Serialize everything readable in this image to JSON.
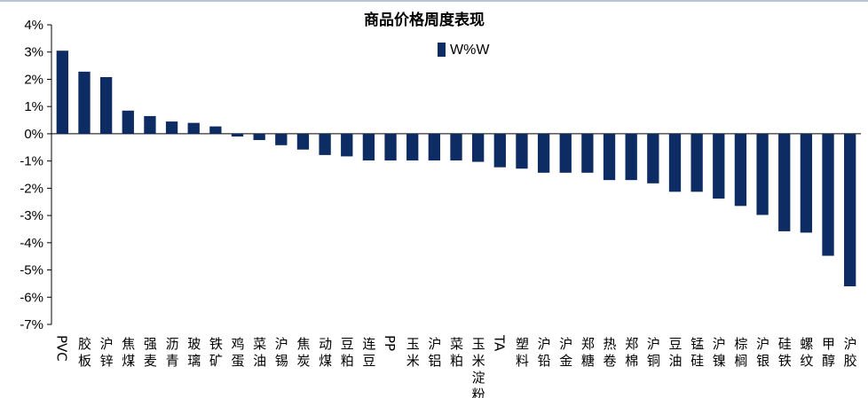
{
  "colors": {
    "bar": "#0d2c64",
    "axis": "#000000"
  },
  "chart_data": {
    "type": "bar",
    "title": "商品价格周度表现",
    "legend": "W%W",
    "legend_position": "top-center",
    "ylim": [
      -0.07,
      0.04
    ],
    "yticks": [
      {
        "value": 0.04,
        "label": "4%"
      },
      {
        "value": 0.03,
        "label": "3%"
      },
      {
        "value": 0.02,
        "label": "2%"
      },
      {
        "value": 0.01,
        "label": "1%"
      },
      {
        "value": 0.0,
        "label": "0%"
      },
      {
        "value": -0.01,
        "label": "-1%"
      },
      {
        "value": -0.02,
        "label": "-2%"
      },
      {
        "value": -0.03,
        "label": "-3%"
      },
      {
        "value": -0.04,
        "label": "-4%"
      },
      {
        "value": -0.05,
        "label": "-5%"
      },
      {
        "value": -0.06,
        "label": "-6%"
      },
      {
        "value": -0.07,
        "label": "-7%"
      }
    ],
    "grid": false,
    "categories": [
      "PVC",
      "胶板",
      "沪锌",
      "焦煤",
      "强麦",
      "沥青",
      "玻璃",
      "铁矿",
      "鸡蛋",
      "菜油",
      "沪锡",
      "焦炭",
      "动煤",
      "豆粕",
      "连豆",
      "PP",
      "玉米",
      "沪铝",
      "菜粕",
      "玉米淀粉",
      "TA",
      "塑料",
      "沪铅",
      "沪金",
      "郑糖",
      "热卷",
      "郑棉",
      "沪铜",
      "豆油",
      "锰硅",
      "沪镍",
      "棕榈",
      "沪银",
      "硅铁",
      "螺纹",
      "甲醇",
      "沪胶"
    ],
    "series": [
      {
        "name": "W%W",
        "values": [
          0.0305,
          0.0228,
          0.0208,
          0.0085,
          0.0065,
          0.0045,
          0.004,
          0.0027,
          -0.001,
          -0.0023,
          -0.0042,
          -0.0058,
          -0.0078,
          -0.0083,
          -0.0098,
          -0.0098,
          -0.0098,
          -0.0098,
          -0.0098,
          -0.0103,
          -0.0123,
          -0.0128,
          -0.0143,
          -0.0143,
          -0.0143,
          -0.017,
          -0.017,
          -0.0182,
          -0.0213,
          -0.0213,
          -0.0238,
          -0.0265,
          -0.0298,
          -0.0358,
          -0.0363,
          -0.0448,
          -0.056
        ]
      }
    ]
  }
}
